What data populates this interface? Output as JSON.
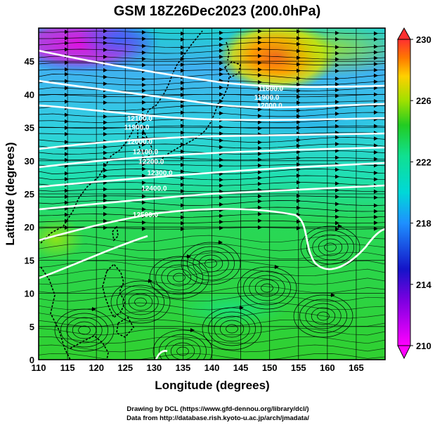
{
  "title": "GSM 18Z26Dec2023 (200.0hPa)",
  "x_axis": {
    "label": "Longitude (degrees)",
    "ticks": [
      "110",
      "115",
      "120",
      "125",
      "130",
      "135",
      "140",
      "145",
      "150",
      "155",
      "160",
      "165"
    ]
  },
  "y_axis": {
    "label": "Latitude  (degrees)",
    "ticks": [
      "0",
      "5",
      "10",
      "15",
      "20",
      "25",
      "30",
      "35",
      "40",
      "45"
    ]
  },
  "colorbar": {
    "ticks": [
      "230",
      "226",
      "222",
      "218",
      "214",
      "210"
    ]
  },
  "credits": {
    "line1": "Drawing by DCL (https://www.gfd-dennou.org/library/dcl/)",
    "line2": "Data from http://database.rish.kyoto-u.ac.jp/arch/jmadata/"
  },
  "contour_labels": [
    {
      "text": "11800.0",
      "lon": 150.2,
      "lat": 40.5
    },
    {
      "text": "11900.0",
      "lon": 149.5,
      "lat": 39.2
    },
    {
      "text": "12000.0",
      "lon": 150.0,
      "lat": 38.0
    },
    {
      "text": "12100.0",
      "lon": 127.5,
      "lat": 36.0
    },
    {
      "text": "11900.0",
      "lon": 127.0,
      "lat": 34.7
    },
    {
      "text": "12000.0",
      "lon": 127.5,
      "lat": 32.5
    },
    {
      "text": "12100.0",
      "lon": 128.5,
      "lat": 31.0
    },
    {
      "text": "12200.0",
      "lon": 129.5,
      "lat": 29.5
    },
    {
      "text": "12300.0",
      "lon": 131.0,
      "lat": 27.8
    },
    {
      "text": "12400.0",
      "lon": 130.0,
      "lat": 25.5
    },
    {
      "text": "12500.0",
      "lon": 128.5,
      "lat": 21.5
    }
  ],
  "colors": {
    "scale": [
      "#ff00ff",
      "#1414c8",
      "#00c8ff",
      "#10e090",
      "#22cc22",
      "#ffff00",
      "#ff7800",
      "#ff3030"
    ],
    "contour": "#ffffff",
    "coast": "#000000"
  },
  "map": {
    "lon_range": [
      110,
      170
    ],
    "lat_range": [
      0,
      50
    ],
    "grid": true
  }
}
